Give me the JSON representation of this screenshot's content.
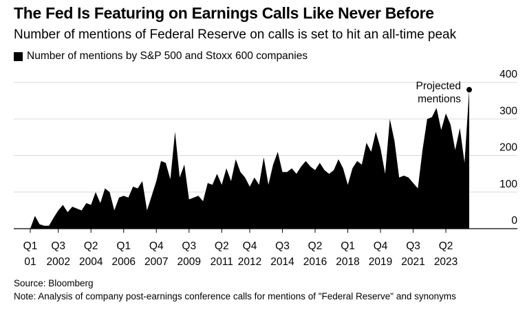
{
  "title": "The Fed Is Featuring on Earnings Calls Like Never Before",
  "subtitle": "Number of mentions of Federal Reserve on calls is set to hit an all-time peak",
  "legend_label": "Number of mentions by S&P 500 and Stoxx 600 companies",
  "colors": {
    "area": "#000000",
    "grid": "#d9d9d9",
    "axis": "#000000"
  },
  "source": "Source: Bloomberg",
  "note": "Note: Analysis of company post-earnings conference calls for mentions of \"Federal Reserve\" and synonyms",
  "chart_data": {
    "type": "area",
    "title": "The Fed Is Featuring on Earnings Calls Like Never Before",
    "subtitle": "Number of mentions of Federal Reserve on calls is set to hit an all-time peak",
    "ylabel": "",
    "ylim": [
      0,
      400
    ],
    "yticks": [
      0,
      100,
      200,
      300,
      400
    ],
    "grid": true,
    "legend_position": "top-left",
    "y_axis_side": "right",
    "x_tick_labels": [
      {
        "index": 0,
        "quarter": "Q1",
        "year": "01"
      },
      {
        "index": 6,
        "quarter": "Q3",
        "year": "2002"
      },
      {
        "index": 13,
        "quarter": "Q2",
        "year": "2004"
      },
      {
        "index": 20,
        "quarter": "Q1",
        "year": "2006"
      },
      {
        "index": 27,
        "quarter": "Q4",
        "year": "2007"
      },
      {
        "index": 34,
        "quarter": "Q3",
        "year": "2009"
      },
      {
        "index": 41,
        "quarter": "Q2",
        "year": "2011"
      },
      {
        "index": 47,
        "quarter": "Q4",
        "year": "2012"
      },
      {
        "index": 54,
        "quarter": "Q3",
        "year": "2014"
      },
      {
        "index": 61,
        "quarter": "Q2",
        "year": "2016"
      },
      {
        "index": 68,
        "quarter": "Q1",
        "year": "2018"
      },
      {
        "index": 75,
        "quarter": "Q4",
        "year": "2019"
      },
      {
        "index": 82,
        "quarter": "Q3",
        "year": "2021"
      },
      {
        "index": 89,
        "quarter": "Q2",
        "year": "2023"
      }
    ],
    "series": [
      {
        "name": "Number of mentions by S&P 500 and Stoxx 600 companies",
        "values": [
          0,
          35,
          12,
          8,
          8,
          30,
          50,
          65,
          45,
          60,
          55,
          50,
          70,
          65,
          100,
          70,
          110,
          100,
          50,
          85,
          90,
          85,
          115,
          110,
          130,
          50,
          90,
          130,
          185,
          180,
          135,
          265,
          140,
          175,
          80,
          85,
          90,
          75,
          125,
          120,
          150,
          120,
          165,
          130,
          190,
          155,
          140,
          115,
          140,
          120,
          195,
          120,
          175,
          210,
          155,
          155,
          165,
          150,
          170,
          185,
          170,
          160,
          180,
          160,
          150,
          160,
          190,
          165,
          120,
          165,
          185,
          175,
          235,
          210,
          265,
          220,
          150,
          300,
          240,
          140,
          145,
          140,
          125,
          110,
          215,
          300,
          305,
          330,
          270,
          315,
          285,
          215,
          275,
          180,
          380
        ]
      }
    ],
    "annotation": {
      "text_lines": [
        "Projected",
        "mentions"
      ],
      "index": 94,
      "value": 380
    }
  }
}
